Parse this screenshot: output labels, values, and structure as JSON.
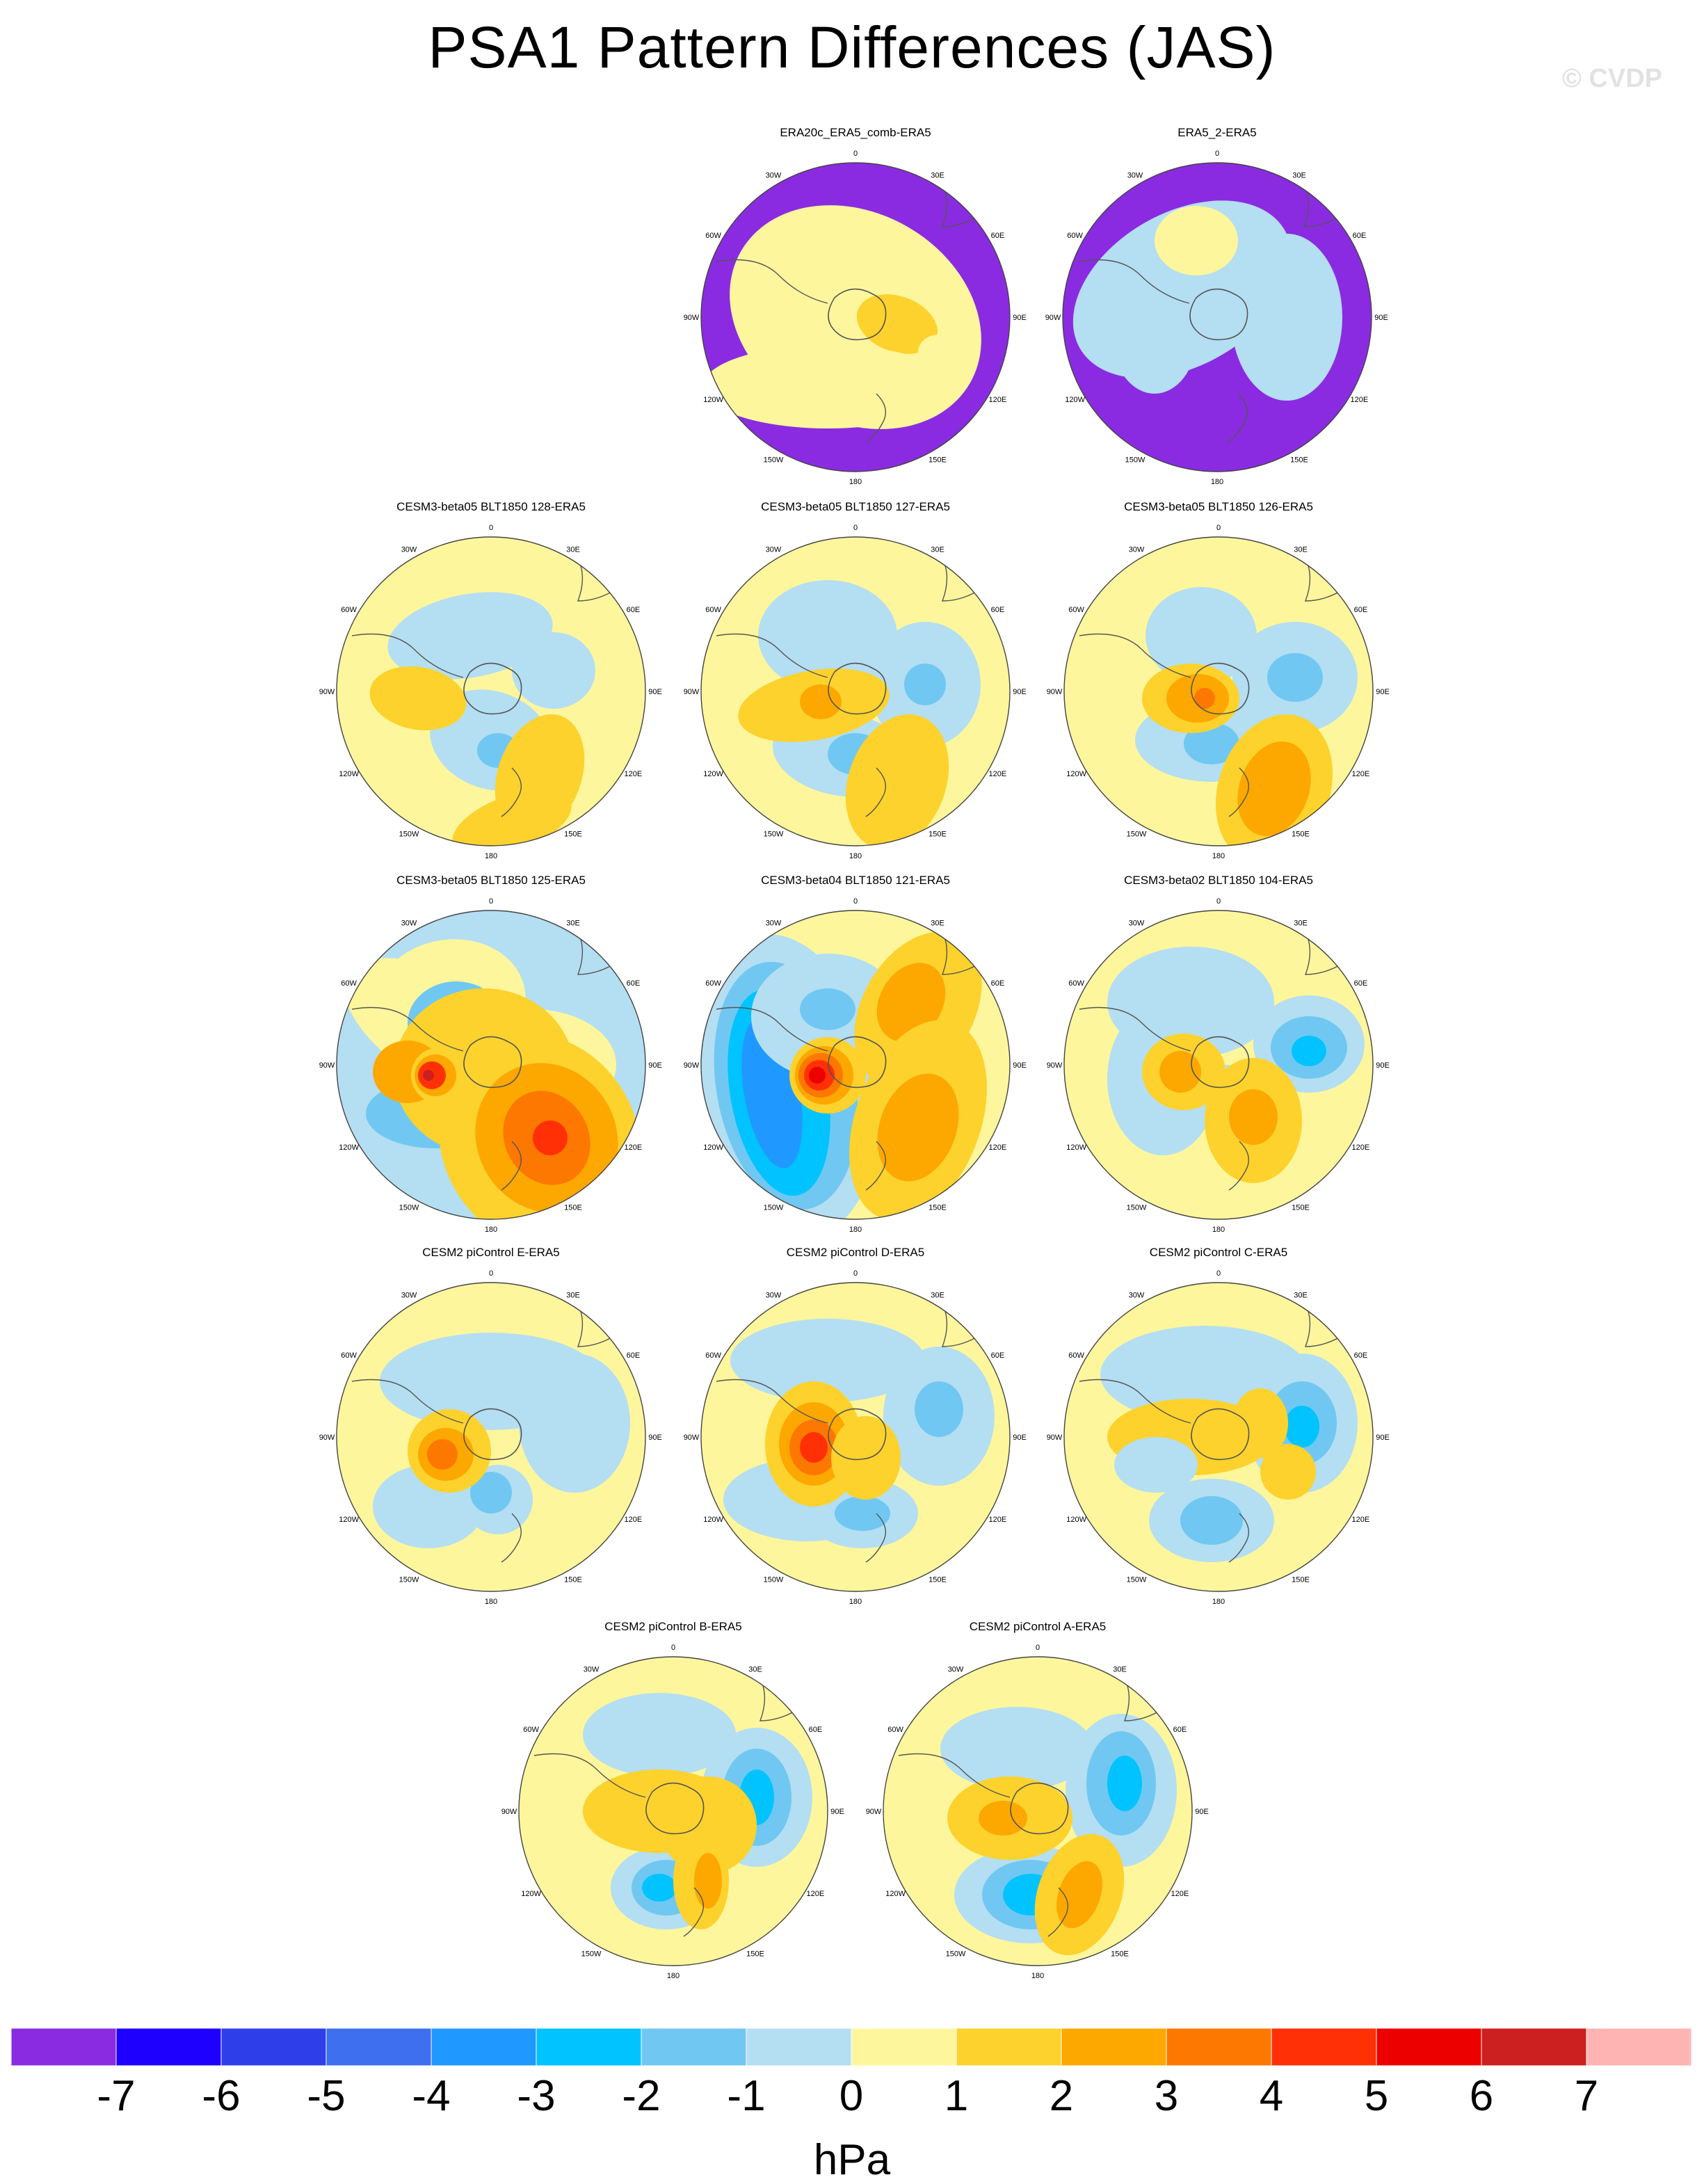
{
  "title": "PSA1 Pattern Differences (JAS)",
  "watermark": "© CVDP",
  "colors": {
    "levels": [
      "#8a2be2",
      "#1e00ff",
      "#2e3fea",
      "#3d6fee",
      "#1f99ff",
      "#00c3ff",
      "#70c8f2",
      "#b4def2",
      "#fdf69c",
      "#fdd22c",
      "#fda800",
      "#fd7800",
      "#ff3006",
      "#ec0000",
      "#cc1f1f",
      "#ffb4b4"
    ],
    "land": "#555555"
  },
  "colorbar": {
    "ticks": [
      "-7",
      "-6",
      "-5",
      "-4",
      "-3",
      "-2",
      "-1",
      "0",
      "1",
      "2",
      "3",
      "4",
      "5",
      "6",
      "7"
    ],
    "unit": "hPa"
  },
  "lon_labels": [
    "0",
    "30E",
    "60E",
    "90E",
    "120E",
    "150E",
    "180",
    "150W",
    "120W",
    "90W",
    "60W",
    "30W"
  ],
  "panels": [
    {
      "title": "ERA20c_ERA5_comb-ERA5",
      "bg": 0,
      "blobs": [
        [
          200,
          200,
          190,
          150,
          30,
          8
        ],
        [
          260,
          210,
          60,
          40,
          20,
          9
        ],
        [
          320,
          250,
          30,
          25,
          0,
          8
        ],
        [
          130,
          130,
          70,
          60,
          20,
          8
        ],
        [
          160,
          300,
          180,
          60,
          0,
          8
        ]
      ]
    },
    {
      "title": "ERA5_2-ERA5",
      "bg": 0,
      "blobs": [
        [
          150,
          160,
          170,
          110,
          -30,
          7
        ],
        [
          300,
          200,
          80,
          120,
          0,
          7
        ],
        [
          110,
          230,
          60,
          80,
          0,
          7
        ],
        [
          170,
          90,
          60,
          50,
          0,
          8
        ]
      ]
    },
    {
      "title": "CESM3-beta05 BLT1850 128-ERA5",
      "bg": 8,
      "blobs": [
        [
          170,
          120,
          120,
          60,
          -10,
          7
        ],
        [
          290,
          170,
          60,
          55,
          0,
          7
        ],
        [
          200,
          270,
          90,
          70,
          20,
          7
        ],
        [
          210,
          285,
          30,
          25,
          0,
          6
        ],
        [
          95,
          210,
          70,
          45,
          10,
          9
        ],
        [
          270,
          320,
          60,
          90,
          20,
          9
        ],
        [
          230,
          390,
          90,
          40,
          -20,
          9
        ]
      ]
    },
    {
      "title": "CESM3-beta05 BLT1850 127-ERA5",
      "bg": 8,
      "blobs": [
        [
          160,
          120,
          100,
          80,
          0,
          7
        ],
        [
          300,
          190,
          80,
          90,
          0,
          7
        ],
        [
          300,
          190,
          30,
          30,
          0,
          6
        ],
        [
          180,
          290,
          100,
          60,
          10,
          7
        ],
        [
          200,
          290,
          40,
          30,
          0,
          6
        ],
        [
          140,
          220,
          110,
          50,
          -10,
          9
        ],
        [
          150,
          215,
          30,
          25,
          0,
          10
        ],
        [
          260,
          330,
          70,
          100,
          20,
          9
        ]
      ]
    },
    {
      "title": "CESM3-beta05 BLT1850 126-ERA5",
      "bg": 8,
      "blobs": [
        [
          175,
          120,
          80,
          70,
          0,
          7
        ],
        [
          310,
          180,
          90,
          80,
          0,
          7
        ],
        [
          310,
          180,
          40,
          35,
          0,
          6
        ],
        [
          190,
          270,
          110,
          60,
          0,
          7
        ],
        [
          190,
          275,
          40,
          30,
          0,
          6
        ],
        [
          160,
          210,
          70,
          50,
          0,
          9
        ],
        [
          170,
          210,
          45,
          35,
          0,
          10
        ],
        [
          180,
          210,
          15,
          15,
          0,
          11
        ],
        [
          280,
          340,
          80,
          110,
          20,
          9
        ],
        [
          280,
          340,
          50,
          70,
          20,
          10
        ]
      ]
    },
    {
      "title": "CESM3-beta05 BLT1850 125-ERA5",
      "bg": 7,
      "blobs": [
        [
          140,
          110,
          110,
          90,
          -10,
          8
        ],
        [
          130,
          200,
          60,
          60,
          0,
          8
        ],
        [
          260,
          200,
          120,
          80,
          0,
          8
        ],
        [
          150,
          160,
          180,
          80,
          30,
          8
        ],
        [
          150,
          140,
          70,
          60,
          0,
          6
        ],
        [
          150,
          140,
          40,
          35,
          0,
          5
        ],
        [
          120,
          270,
          100,
          50,
          0,
          6
        ],
        [
          190,
          210,
          130,
          120,
          0,
          9
        ],
        [
          250,
          300,
          80,
          120,
          20,
          9
        ],
        [
          80,
          210,
          50,
          45,
          0,
          10
        ],
        [
          270,
          310,
          140,
          160,
          -30,
          9
        ],
        [
          280,
          305,
          100,
          110,
          -30,
          10
        ],
        [
          280,
          305,
          60,
          70,
          -30,
          11
        ],
        [
          285,
          305,
          25,
          25,
          0,
          12
        ],
        [
          125,
          215,
          40,
          40,
          0,
          9
        ],
        [
          120,
          215,
          30,
          30,
          0,
          10
        ],
        [
          115,
          215,
          20,
          20,
          0,
          12
        ],
        [
          110,
          215,
          8,
          8,
          0,
          14
        ]
      ]
    },
    {
      "title": "CESM3-beta04 BLT1850 121-ERA5",
      "bg": 8,
      "blobs": [
        [
          100,
          230,
          130,
          220,
          -10,
          7
        ],
        [
          100,
          230,
          100,
          180,
          -10,
          6
        ],
        [
          90,
          240,
          70,
          150,
          -10,
          5
        ],
        [
          80,
          240,
          40,
          110,
          -10,
          4
        ],
        [
          160,
          130,
          110,
          90,
          0,
          7
        ],
        [
          160,
          120,
          40,
          30,
          0,
          6
        ],
        [
          290,
          120,
          80,
          120,
          30,
          9
        ],
        [
          280,
          110,
          45,
          60,
          30,
          10
        ],
        [
          290,
          280,
          90,
          150,
          20,
          9
        ],
        [
          290,
          290,
          55,
          80,
          20,
          10
        ],
        [
          160,
          215,
          55,
          55,
          0,
          9
        ],
        [
          155,
          215,
          42,
          42,
          0,
          10
        ],
        [
          150,
          215,
          32,
          32,
          0,
          11
        ],
        [
          148,
          215,
          22,
          22,
          0,
          12
        ],
        [
          145,
          215,
          12,
          12,
          0,
          13
        ]
      ]
    },
    {
      "title": "CESM3-beta02 BLT1850 104-ERA5",
      "bg": 8,
      "blobs": [
        [
          160,
          110,
          120,
          80,
          0,
          7
        ],
        [
          330,
          170,
          80,
          70,
          0,
          7
        ],
        [
          330,
          175,
          55,
          45,
          0,
          6
        ],
        [
          330,
          180,
          25,
          22,
          0,
          5
        ],
        [
          210,
          250,
          55,
          50,
          0,
          7
        ],
        [
          210,
          255,
          28,
          28,
          0,
          6
        ],
        [
          120,
          220,
          80,
          110,
          0,
          7
        ],
        [
          150,
          210,
          60,
          55,
          0,
          9
        ],
        [
          145,
          210,
          30,
          30,
          0,
          10
        ],
        [
          250,
          280,
          70,
          90,
          0,
          9
        ],
        [
          250,
          275,
          35,
          40,
          0,
          10
        ]
      ]
    },
    {
      "title": "CESM2 piControl E-ERA5",
      "bg": 8,
      "blobs": [
        [
          200,
          120,
          160,
          70,
          0,
          7
        ],
        [
          320,
          180,
          80,
          100,
          0,
          7
        ],
        [
          110,
          300,
          80,
          60,
          0,
          7
        ],
        [
          210,
          290,
          50,
          50,
          0,
          7
        ],
        [
          200,
          280,
          30,
          30,
          0,
          6
        ],
        [
          140,
          220,
          60,
          60,
          0,
          9
        ],
        [
          135,
          225,
          40,
          38,
          0,
          10
        ],
        [
          130,
          225,
          22,
          22,
          0,
          11
        ]
      ]
    },
    {
      "title": "CESM2 piControl D-ERA5",
      "bg": 8,
      "blobs": [
        [
          160,
          90,
          140,
          60,
          0,
          7
        ],
        [
          320,
          170,
          80,
          100,
          0,
          7
        ],
        [
          320,
          160,
          35,
          40,
          0,
          6
        ],
        [
          130,
          290,
          120,
          60,
          0,
          7
        ],
        [
          210,
          310,
          80,
          50,
          0,
          7
        ],
        [
          210,
          310,
          40,
          25,
          0,
          6
        ],
        [
          140,
          210,
          70,
          90,
          0,
          9
        ],
        [
          140,
          210,
          50,
          60,
          0,
          10
        ],
        [
          140,
          215,
          35,
          40,
          0,
          11
        ],
        [
          140,
          215,
          20,
          22,
          0,
          12
        ],
        [
          215,
          230,
          50,
          60,
          0,
          9
        ]
      ]
    },
    {
      "title": "CESM2 piControl C-ERA5",
      "bg": 8,
      "blobs": [
        [
          180,
          110,
          150,
          70,
          0,
          7
        ],
        [
          320,
          180,
          80,
          100,
          0,
          7
        ],
        [
          320,
          180,
          50,
          60,
          0,
          6
        ],
        [
          320,
          185,
          25,
          30,
          0,
          5
        ],
        [
          190,
          320,
          90,
          60,
          0,
          7
        ],
        [
          190,
          320,
          45,
          35,
          0,
          6
        ],
        [
          160,
          200,
          120,
          55,
          0,
          9
        ],
        [
          260,
          180,
          40,
          50,
          0,
          9
        ],
        [
          300,
          250,
          40,
          40,
          0,
          9
        ],
        [
          110,
          240,
          60,
          40,
          0,
          7
        ]
      ]
    },
    {
      "title": "CESM2 piControl B-ERA5",
      "bg": 8,
      "blobs": [
        [
          180,
          90,
          110,
          60,
          0,
          7
        ],
        [
          320,
          180,
          80,
          100,
          0,
          7
        ],
        [
          320,
          180,
          50,
          70,
          0,
          6
        ],
        [
          320,
          180,
          25,
          40,
          0,
          5
        ],
        [
          190,
          310,
          80,
          60,
          0,
          7
        ],
        [
          190,
          310,
          50,
          40,
          0,
          6
        ],
        [
          180,
          310,
          25,
          20,
          0,
          5
        ],
        [
          180,
          200,
          110,
          60,
          0,
          9
        ],
        [
          250,
          220,
          70,
          70,
          0,
          9
        ],
        [
          240,
          300,
          40,
          70,
          0,
          9
        ],
        [
          250,
          300,
          20,
          40,
          0,
          10
        ]
      ]
    },
    {
      "title": "CESM2 piControl A-ERA5",
      "bg": 8,
      "blobs": [
        [
          170,
          110,
          110,
          60,
          0,
          7
        ],
        [
          320,
          170,
          80,
          110,
          0,
          7
        ],
        [
          320,
          160,
          50,
          75,
          0,
          6
        ],
        [
          325,
          160,
          25,
          40,
          0,
          5
        ],
        [
          190,
          320,
          110,
          70,
          0,
          7
        ],
        [
          190,
          320,
          70,
          50,
          0,
          6
        ],
        [
          190,
          320,
          40,
          30,
          0,
          5
        ],
        [
          160,
          210,
          90,
          60,
          0,
          9
        ],
        [
          150,
          210,
          35,
          25,
          0,
          10
        ],
        [
          260,
          320,
          60,
          90,
          20,
          9
        ],
        [
          260,
          320,
          30,
          50,
          20,
          10
        ]
      ]
    }
  ]
}
